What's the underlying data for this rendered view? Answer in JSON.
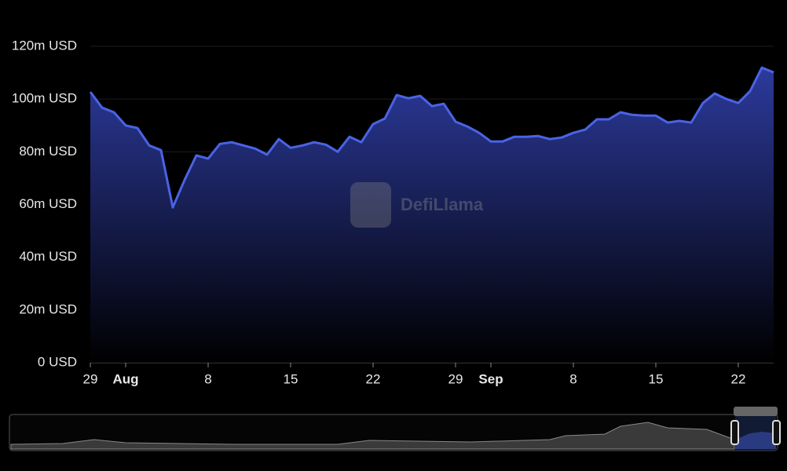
{
  "chart_data": {
    "type": "area",
    "watermark": "DefiLlama",
    "x": [
      0,
      1,
      2,
      3,
      4,
      5,
      6,
      7,
      8,
      9,
      10,
      11,
      12,
      13,
      14,
      15,
      16,
      17,
      18,
      19,
      20,
      21,
      22,
      23,
      24,
      25,
      26,
      27,
      28,
      29,
      30,
      31,
      32,
      33,
      34,
      35,
      36,
      37,
      38,
      39,
      40,
      41,
      42,
      43,
      44,
      45,
      46,
      47,
      48,
      49,
      50,
      51,
      52,
      53,
      54,
      55,
      56,
      57,
      58
    ],
    "values": [
      102.7,
      96.7,
      95,
      90,
      89,
      82.4,
      80.6,
      58.9,
      69.3,
      78.6,
      77.4,
      83,
      83.6,
      82.4,
      81.2,
      78.9,
      84.8,
      81.5,
      82.4,
      83.6,
      82.7,
      80,
      85.7,
      83.6,
      90.5,
      92.6,
      101.5,
      100.3,
      101.2,
      97.3,
      98.2,
      91.4,
      89.6,
      87.2,
      83.9,
      83.9,
      85.7,
      85.7,
      86,
      84.8,
      85.4,
      87.2,
      88.4,
      92.3,
      92.3,
      95,
      94,
      93.7,
      93.7,
      91.1,
      91.7,
      91.1,
      98.5,
      102.1,
      100,
      98.5,
      103,
      111.9,
      110.1
    ],
    "color": "#4a63e6",
    "xlim": [
      0,
      58
    ],
    "xticks": [
      {
        "value": 0,
        "label": "29"
      },
      {
        "value": 3,
        "label": "Aug"
      },
      {
        "value": 10,
        "label": "8"
      },
      {
        "value": 17,
        "label": "15"
      },
      {
        "value": 24,
        "label": "22"
      },
      {
        "value": 31,
        "label": "29"
      },
      {
        "value": 34,
        "label": "Sep"
      },
      {
        "value": 41,
        "label": "8"
      },
      {
        "value": 48,
        "label": "15"
      },
      {
        "value": 55,
        "label": "22"
      }
    ],
    "ylim": [
      0,
      120
    ],
    "yticks": [
      {
        "value": 0,
        "label": "0 USD"
      },
      {
        "value": 20,
        "label": "20m USD"
      },
      {
        "value": 40,
        "label": "40m USD"
      },
      {
        "value": 60,
        "label": "60m USD"
      },
      {
        "value": 80,
        "label": "80m USD"
      },
      {
        "value": 100,
        "label": "100m USD"
      },
      {
        "value": 120,
        "label": "120m USD"
      }
    ],
    "grid": true
  }
}
